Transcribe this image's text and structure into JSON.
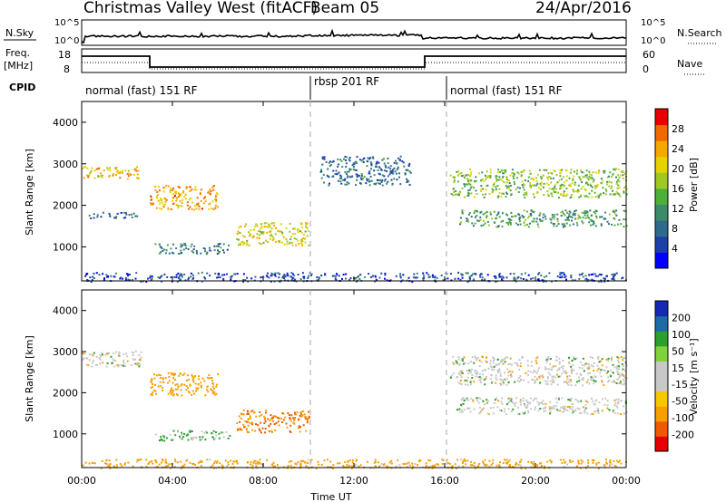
{
  "header": {
    "station": "Christmas Valley West (fitACF)",
    "beam": "Beam 05",
    "date": "24/Apr/2016"
  },
  "status_panels": {
    "nsky_label": "N.Sky",
    "nsky_ticks": [
      "10^5",
      "10^0"
    ],
    "nsearch_label": "N.Search",
    "nsearch_ticks": [
      "10^5",
      "10^0"
    ],
    "freq_label": "Freq.",
    "freq_unit": "[MHz]",
    "freq_ticks": [
      "18",
      "8"
    ],
    "nave_label": "Nave",
    "nave_ticks": [
      "60",
      "0"
    ],
    "cpid_label": "CPID",
    "modes": [
      {
        "name": "normal (fast) 151 RF",
        "start_hour": 0,
        "end_hour": 10
      },
      {
        "name": "rbsp 201 RF",
        "start_hour": 10,
        "end_hour": 16
      },
      {
        "name": "normal (fast) 151 RF",
        "start_hour": 16,
        "end_hour": 24
      }
    ]
  },
  "chart_data": [
    {
      "type": "heatmap",
      "parameter": "Power",
      "ylabel": "Slant Range [km]",
      "xlabel": "",
      "ylim": [
        180,
        4500
      ],
      "xlim_hours": [
        0,
        24
      ],
      "yticks": [
        1000,
        2000,
        3000,
        4000
      ],
      "colorbar": {
        "label": "Power [dB]",
        "ticks": [
          "28",
          "24",
          "20",
          "16",
          "12",
          "8",
          "4"
        ],
        "colors": [
          "#0000ff",
          "#1c3fa8",
          "#2f6a8c",
          "#3c8a6a",
          "#4caf3a",
          "#9fc820",
          "#e6d200",
          "#f7a800",
          "#f06a00",
          "#e60000"
        ]
      },
      "echo_bands": [
        {
          "x_start": 0.0,
          "x_end": 2.6,
          "range_start": 2650,
          "range_end": 2950,
          "value": 22
        },
        {
          "x_start": 0.3,
          "x_end": 2.5,
          "range_start": 1700,
          "range_end": 1850,
          "value": 8
        },
        {
          "x_start": 3.0,
          "x_end": 6.0,
          "range_start": 1900,
          "range_end": 2500,
          "value": 24
        },
        {
          "x_start": 6.8,
          "x_end": 10.0,
          "range_start": 1050,
          "range_end": 1600,
          "value": 20
        },
        {
          "x_start": 3.2,
          "x_end": 6.5,
          "range_start": 850,
          "range_end": 1100,
          "value": 10
        },
        {
          "x_start": 10.5,
          "x_end": 14.5,
          "range_start": 2500,
          "range_end": 3200,
          "value": 8
        },
        {
          "x_start": 16.2,
          "x_end": 24.0,
          "range_start": 2200,
          "range_end": 2900,
          "value": 16
        },
        {
          "x_start": 16.5,
          "x_end": 24.0,
          "range_start": 1500,
          "range_end": 1900,
          "value": 12
        },
        {
          "x_start": 0.0,
          "x_end": 24.0,
          "range_start": 180,
          "range_end": 400,
          "value": 6
        }
      ]
    },
    {
      "type": "heatmap",
      "parameter": "Velocity",
      "ylabel": "Slant Range [km]",
      "xlabel": "Time UT",
      "ylim": [
        180,
        4500
      ],
      "xlim_hours": [
        0,
        24
      ],
      "yticks": [
        1000,
        2000,
        3000,
        4000
      ],
      "xticks": [
        "00:00",
        "04:00",
        "08:00",
        "12:00",
        "16:00",
        "20:00",
        "00:00"
      ],
      "colorbar": {
        "label": "Velocity [m s⁻¹]",
        "ticks": [
          "200",
          "100",
          "50",
          "15",
          "-15",
          "-50",
          "-100",
          "-200"
        ],
        "colors": [
          "#e60000",
          "#f05a00",
          "#f7a000",
          "#f7c800",
          "#c8c8c8",
          "#c8c8c8",
          "#7fd23c",
          "#2ca02c",
          "#1c6aa8",
          "#1428b4"
        ]
      },
      "echo_bands": [
        {
          "x_start": 0.0,
          "x_end": 2.6,
          "range_start": 2650,
          "range_end": 3050,
          "value": 0
        },
        {
          "x_start": 3.0,
          "x_end": 6.0,
          "range_start": 1950,
          "range_end": 2500,
          "value": -40
        },
        {
          "x_start": 6.8,
          "x_end": 10.0,
          "range_start": 1050,
          "range_end": 1600,
          "value": -60
        },
        {
          "x_start": 3.2,
          "x_end": 6.5,
          "range_start": 850,
          "range_end": 1100,
          "value": 20
        },
        {
          "x_start": 16.2,
          "x_end": 24.0,
          "range_start": 2200,
          "range_end": 2900,
          "value": 0
        },
        {
          "x_start": 16.5,
          "x_end": 24.0,
          "range_start": 1500,
          "range_end": 1900,
          "value": 0
        },
        {
          "x_start": 0.0,
          "x_end": 24.0,
          "range_start": 180,
          "range_end": 400,
          "value": -30
        }
      ]
    }
  ]
}
